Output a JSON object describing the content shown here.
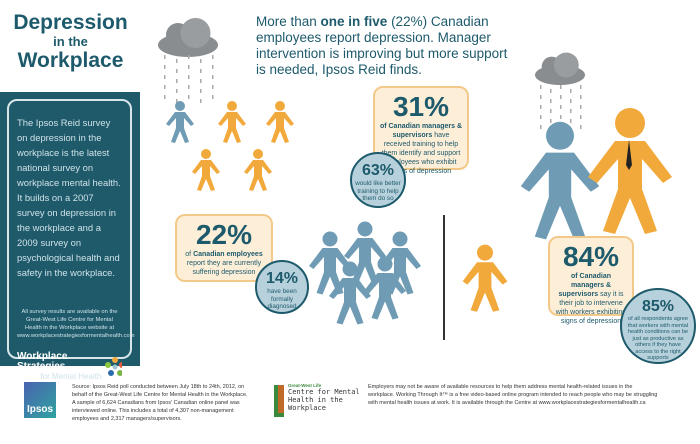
{
  "title": {
    "line1": "Depression",
    "line2": "in the",
    "line3": "Workplace"
  },
  "sidebar": {
    "text": "The Ipsos Reid survey on depression in the workplace is the latest national survey on workplace mental health. It builds on a 2007 survey on depression in the workplace and a 2009 survey on psychological health and safety in the workplace.",
    "note": "All survey results are available on the Great-West Life Centre for Mental Health in the Workplace website at www.workplacestrategiesformentalhealth.com",
    "logo_line1": "Workplace Strategies",
    "logo_line2": "for Mental Health"
  },
  "headline": {
    "pre": "More than ",
    "bold": "one in five",
    "post": " (22%) Canadian employees report depression. Manager intervention is improving but more support is needed, Ipsos Reid finds."
  },
  "stats": {
    "s31": {
      "pct": "31%",
      "bold": "of Canadian managers & supervisors",
      "text": " have received training to help them identify and support employees who exhibit signs of depression"
    },
    "s63": {
      "pct": "63%",
      "text": "would like better training to help them do so"
    },
    "s22": {
      "pct": "22%",
      "pre": "of ",
      "bold": "Canadian employees",
      "text": " report they are currently suffering depression"
    },
    "s14": {
      "pct": "14%",
      "text": "have been formally diagnosed"
    },
    "s84": {
      "pct": "84%",
      "bold": "of Canadian managers & supervisors",
      "text": " say it is their job to intervene with workers exhibiting signs of depression"
    },
    "s85": {
      "pct": "85%",
      "text": "of all respondents agree that workers with mental health conditions can be just as productive as others if they have access to the right supports"
    }
  },
  "footer": {
    "ipsos": "Ipsos",
    "source": "Source: Ipsos Reid poll conducted between July 18th to 24th, 2012, on behalf of the Great-West Life Centre for Mental Health in the Workplace. A sample of 6,624 Canadians from Ipsos' Canadian online panel was interviewed online. This includes a total of 4,307 non-management employees and 2,317 managers/supervisors.",
    "gwl_small": "Great-West Life",
    "gwl_name": "Centre for Mental Health in the Workplace",
    "info": "Employers may not be aware of available resources to help them address mental health-related issues in the workplace. Working Through It™ is a free video-based online program intended to reach people who may be struggling with mental health issues at work. It is available through the Centre at www.workplacestrategiesformentalhealth.ca"
  },
  "colors": {
    "teal": "#1d5a6c",
    "orange": "#f2a93b",
    "blue_figure": "#6f9cb4",
    "box_fill": "#fdeed8",
    "circle_fill": "#b7d1dc"
  }
}
